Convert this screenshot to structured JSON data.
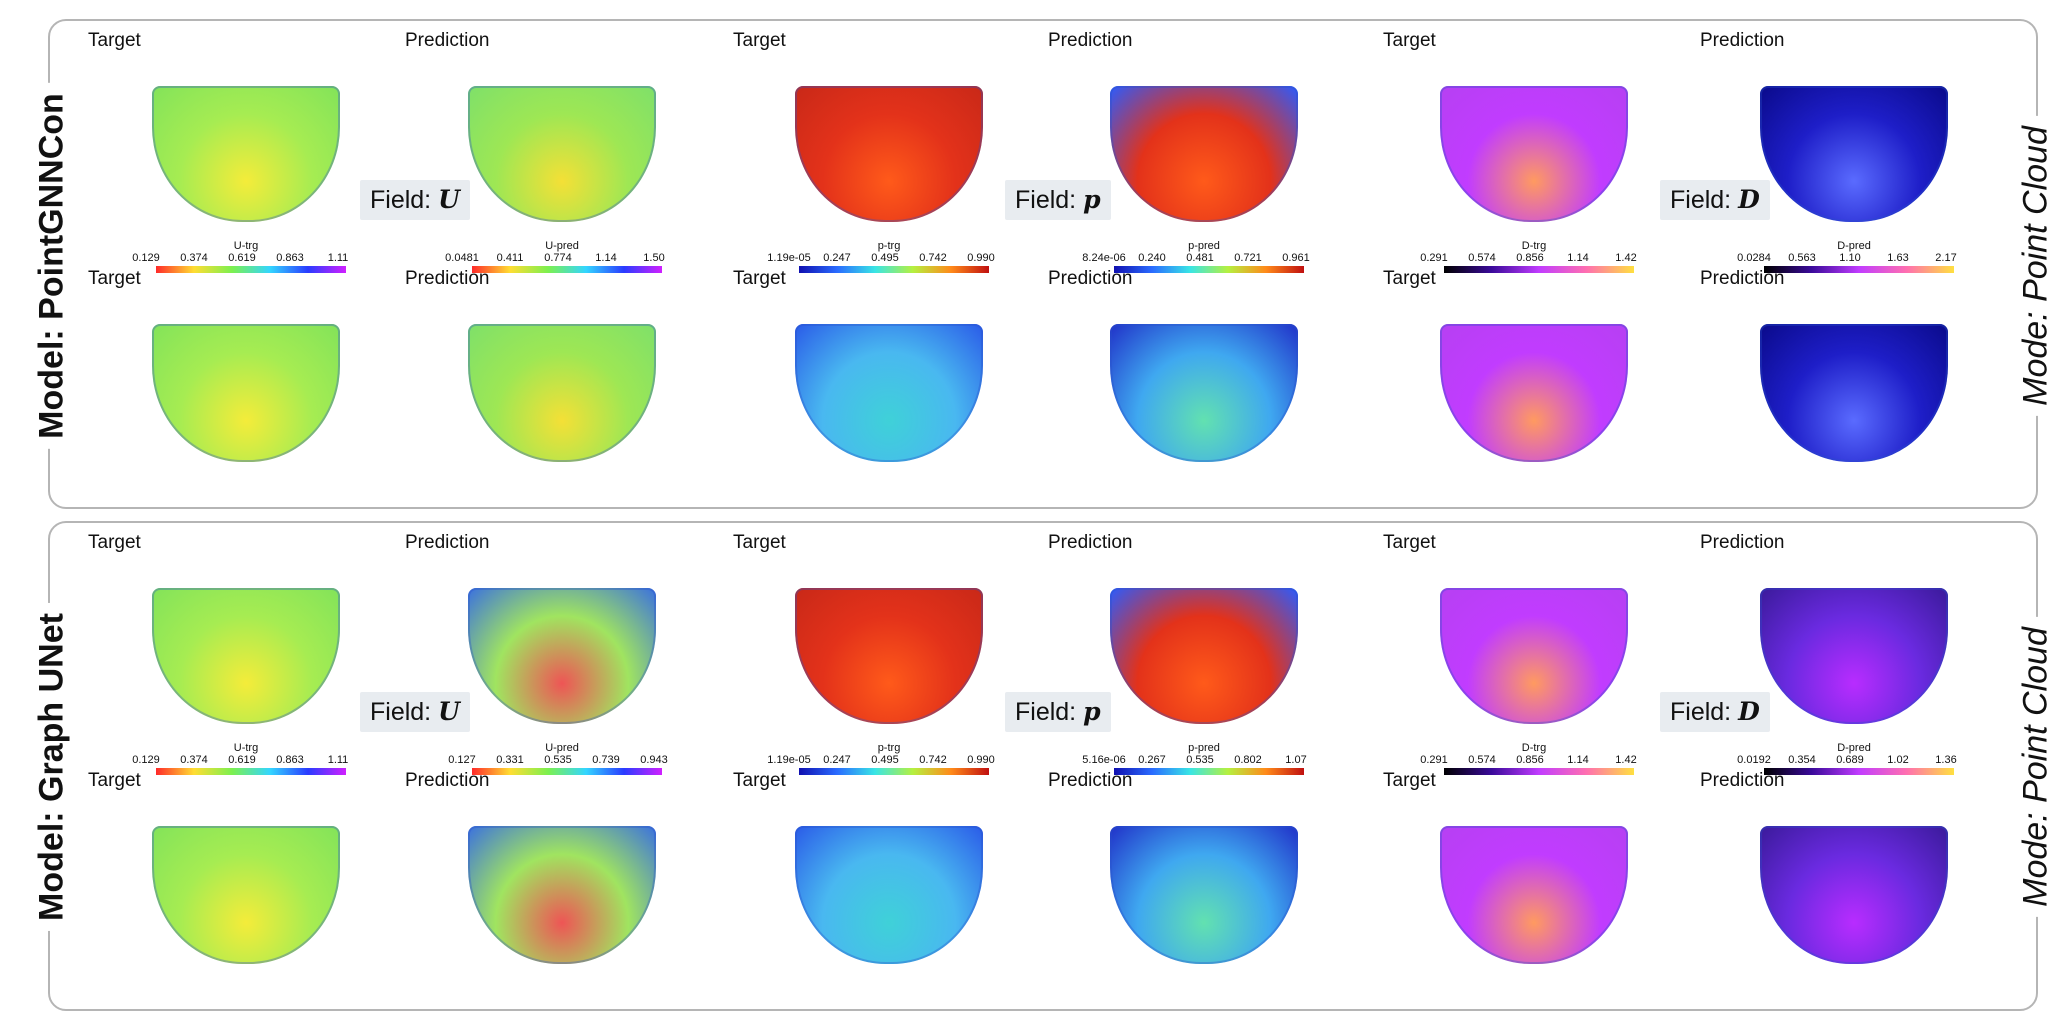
{
  "models": [
    {
      "name": "Model: PointGNNCon",
      "mode": "Mode: Point Cloud",
      "fields": [
        {
          "label_prefix": "Field:",
          "symbol": "U",
          "target_cbar": {
            "title": "U-trg",
            "ticks": [
              "0.129",
              "0.374",
              "0.619",
              "0.863",
              "1.11"
            ]
          },
          "pred_cbar": {
            "title": "U-pred",
            "ticks": [
              "0.0481",
              "0.411",
              "0.774",
              "1.14",
              "1.50"
            ]
          }
        },
        {
          "label_prefix": "Field:",
          "symbol": "p",
          "target_cbar": {
            "title": "p-trg",
            "ticks": [
              "1.19e-05",
              "0.247",
              "0.495",
              "0.742",
              "0.990"
            ]
          },
          "pred_cbar": {
            "title": "p-pred",
            "ticks": [
              "8.24e-06",
              "0.240",
              "0.481",
              "0.721",
              "0.961"
            ]
          }
        },
        {
          "label_prefix": "Field:",
          "symbol": "D",
          "target_cbar": {
            "title": "D-trg",
            "ticks": [
              "0.291",
              "0.574",
              "0.856",
              "1.14",
              "1.42"
            ]
          },
          "pred_cbar": {
            "title": "D-pred",
            "ticks": [
              "0.0284",
              "0.563",
              "1.10",
              "1.63",
              "2.17"
            ]
          }
        }
      ]
    },
    {
      "name": "Model: Graph UNet",
      "mode": "Mode: Point Cloud",
      "fields": [
        {
          "label_prefix": "Field:",
          "symbol": "U",
          "target_cbar": {
            "title": "U-trg",
            "ticks": [
              "0.129",
              "0.374",
              "0.619",
              "0.863",
              "1.11"
            ]
          },
          "pred_cbar": {
            "title": "U-pred",
            "ticks": [
              "0.127",
              "0.331",
              "0.535",
              "0.739",
              "0.943"
            ]
          }
        },
        {
          "label_prefix": "Field:",
          "symbol": "p",
          "target_cbar": {
            "title": "p-trg",
            "ticks": [
              "1.19e-05",
              "0.247",
              "0.495",
              "0.742",
              "0.990"
            ]
          },
          "pred_cbar": {
            "title": "p-pred",
            "ticks": [
              "5.16e-06",
              "0.267",
              "0.535",
              "0.802",
              "1.07"
            ]
          }
        },
        {
          "label_prefix": "Field:",
          "symbol": "D",
          "target_cbar": {
            "title": "D-trg",
            "ticks": [
              "0.291",
              "0.574",
              "0.856",
              "1.14",
              "1.42"
            ]
          },
          "pred_cbar": {
            "title": "D-pred",
            "ticks": [
              "0.0192",
              "0.354",
              "0.689",
              "1.02",
              "1.36"
            ]
          }
        }
      ]
    }
  ],
  "captions": {
    "target": "Target",
    "prediction": "Prediction"
  },
  "colormaps": {
    "rainbow": [
      "#ff2a2a",
      "#ffdd33",
      "#7cf04f",
      "#33d6ff",
      "#2a3bff",
      "#d020ff"
    ],
    "jet": [
      "#1010b0",
      "#2a6bff",
      "#39e5e5",
      "#b5f040",
      "#ff8a1a",
      "#c01010"
    ],
    "plasma": [
      "#000000",
      "#3a0a9a",
      "#c13cff",
      "#ff6fb0",
      "#ffe040"
    ]
  },
  "map_colors": {
    "U_target": [
      "#f4ec3a",
      "#a6ec52",
      "#82e35a"
    ],
    "U_pred": [
      "#f4e036",
      "#9ee754",
      "#7ee06a"
    ],
    "U_pred_unet": [
      "#e55",
      "#a0e460",
      "#3a70e0"
    ],
    "p_target_1": [
      "#ff5a1a",
      "#e3321a",
      "#c82818"
    ],
    "p_pred_1": [
      "#ff5a1a",
      "#e3321a",
      "#2a5cff"
    ],
    "p_target_2": [
      "#3fd1d8",
      "#49b8f0",
      "#2a5ae8"
    ],
    "p_pred_2": [
      "#62e1b0",
      "#3fa8f0",
      "#2030c8"
    ],
    "D_target": [
      "#ff9a60",
      "#c13cff",
      "#b640f2"
    ],
    "D_pred_1": [
      "#5a6bff",
      "#1e1ec8",
      "#0a0a8a"
    ],
    "D_pred_unet": [
      "#b82cff",
      "#6a2ae0",
      "#3a1a9a"
    ]
  }
}
